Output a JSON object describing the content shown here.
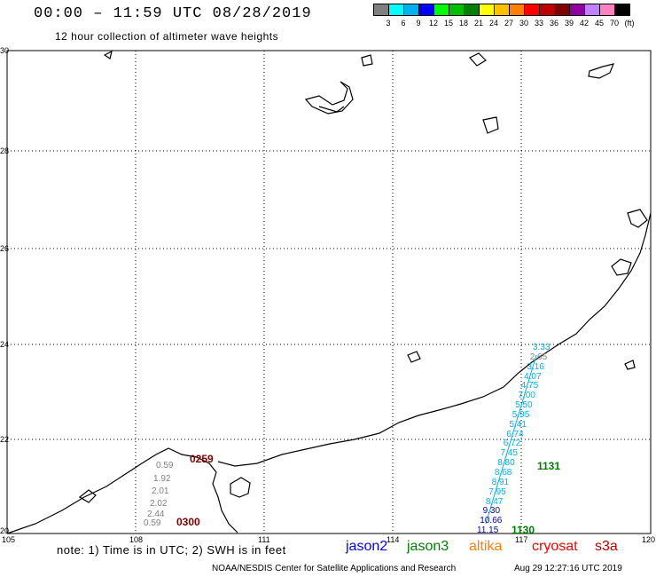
{
  "header": {
    "title": "00:00 – 11:59 UTC 08/28/2019",
    "subtitle": "12 hour collection of altimeter wave heights"
  },
  "legend": {
    "colors": [
      "#808080",
      "#00ffff",
      "#00b0f0",
      "#0000ff",
      "#00ff00",
      "#00c000",
      "#008000",
      "#ffff00",
      "#ffc000",
      "#ff8000",
      "#ff0000",
      "#c00000",
      "#800000",
      "#9000a0",
      "#c080ff",
      "#ff80c0",
      "#000000"
    ],
    "labels": [
      "3",
      "6",
      "9",
      "12",
      "15",
      "18",
      "21",
      "24",
      "27",
      "30",
      "33",
      "36",
      "39",
      "42",
      "45",
      "70",
      "(ft)"
    ]
  },
  "axes": {
    "lat_labels": [
      "30",
      "28",
      "26",
      "24",
      "22",
      "20"
    ],
    "lon_labels": [
      "105",
      "108",
      "111",
      "114",
      "117",
      "120"
    ]
  },
  "tracks": {
    "cryosat_a": {
      "color": "#800000",
      "time": "0259",
      "end_time": "0300",
      "values_color": "#808080",
      "values": [
        "0.59",
        "1.92",
        "2.01",
        "2.02",
        "2.44",
        "0.59"
      ]
    },
    "jason3": {
      "time_a": "1131",
      "time_b": "1130",
      "color": "#008000",
      "values": [
        "3.33",
        "2.65",
        "3.16",
        "4.07",
        "4.75",
        "7.00",
        "5.50",
        "5.95",
        "5.41",
        "6.74",
        "6.72",
        "7.45",
        "8.80",
        "8.68",
        "8.91",
        "7.95",
        "8.47",
        "9.30",
        "10.66",
        "11.15"
      ]
    }
  },
  "footer": {
    "note": "note: 1) Time is in UTC; 2) SWH is in feet",
    "satellites": [
      {
        "name": "jason2",
        "color": "#0000ff"
      },
      {
        "name": "jason3",
        "color": "#008000"
      },
      {
        "name": "altika",
        "color": "#ff8000"
      },
      {
        "name": "cryosat",
        "color": "#ff0000"
      },
      {
        "name": "s3a",
        "color": "#c00000"
      }
    ],
    "credit": "NOAA/NESDIS Center for Satellite Applications and Research",
    "stamp": "Aug 29 12:27:16 UTC 2019"
  }
}
